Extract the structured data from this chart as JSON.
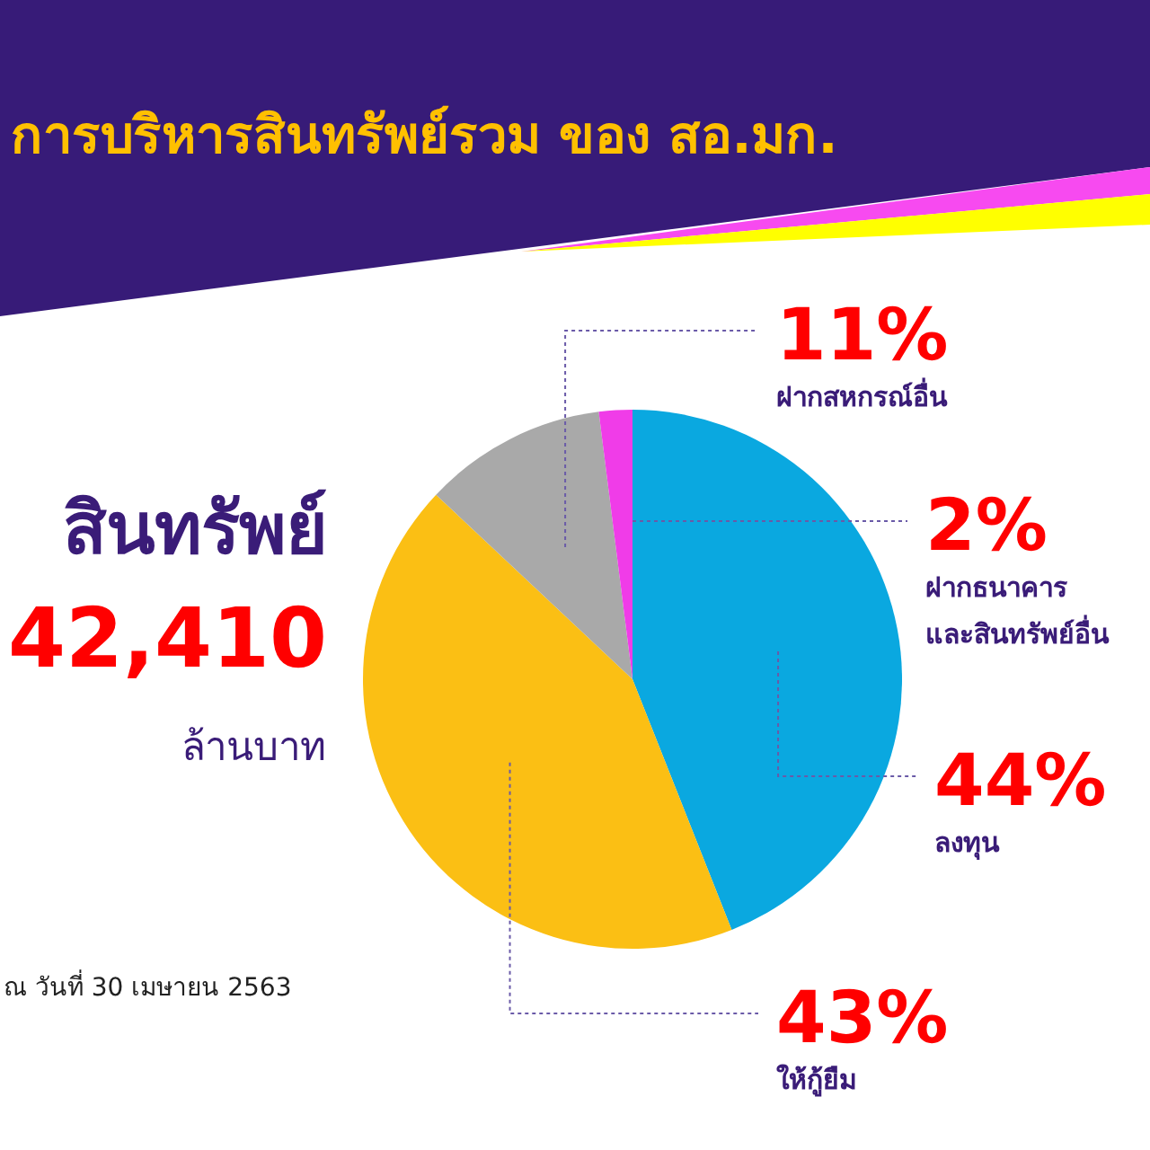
{
  "chart_data": {
    "type": "pie",
    "title": "การบริหารสินทรัพย์รวม ของ สอ.มก.",
    "categories": [
      "ลงทุน",
      "ให้กู้ยืม",
      "ฝากสหกรณ์อื่น",
      "ฝากธนาคาร และสินทรัพย์อื่น"
    ],
    "values": [
      44,
      43,
      11,
      2
    ],
    "colors": [
      "#0aa8e0",
      "#fbbf14",
      "#a9a9a9",
      "#f03ce8"
    ],
    "value_labels": [
      "44%",
      "43%",
      "11%",
      "2%"
    ],
    "legend": false,
    "annotations": [
      "สินทรัพย์",
      "42,410",
      "ล้านบาท",
      "ณ วันที่ 30 เมษายน 2563"
    ]
  }
}
